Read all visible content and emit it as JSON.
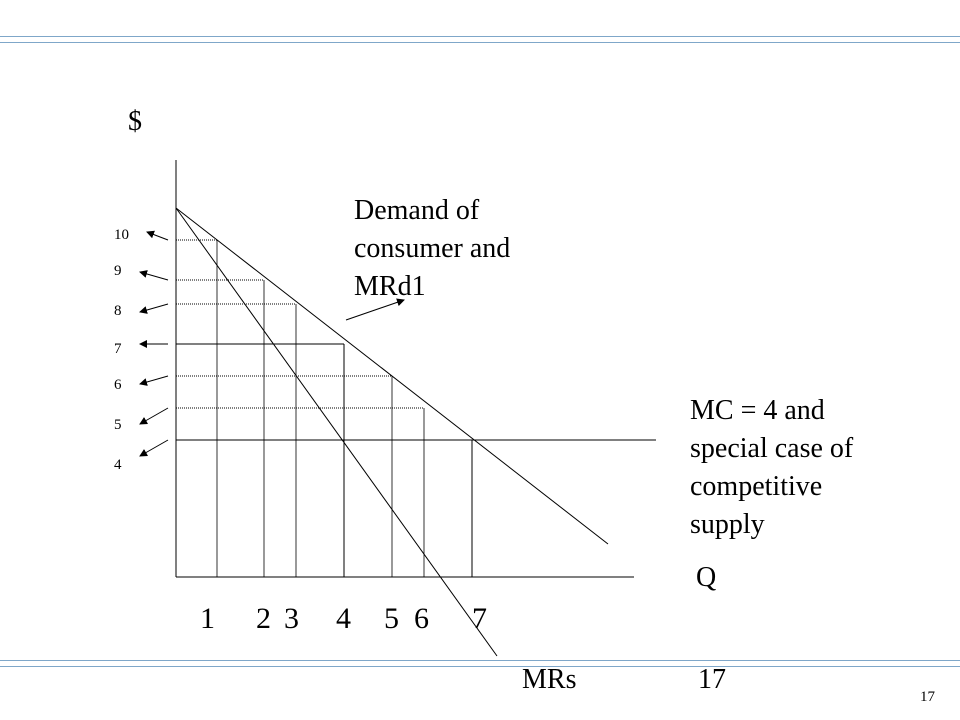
{
  "slide": {
    "page_number": "17",
    "rule_color": "#7fa7c9"
  },
  "diagram": {
    "y_axis_label": "$",
    "x_axis_label": "Q",
    "price_ticks": [
      "10",
      "9",
      "8",
      "7",
      "6",
      "5",
      "4"
    ],
    "quantity_ticks": [
      "1",
      "2",
      "3",
      "4",
      "5",
      "6",
      "7"
    ],
    "demand_annotation": "Demand of consumer and MRd1",
    "mc_annotation": "MC = 4 and special case of competitive supply",
    "mr_label": "MRs",
    "mr_number": "17"
  }
}
